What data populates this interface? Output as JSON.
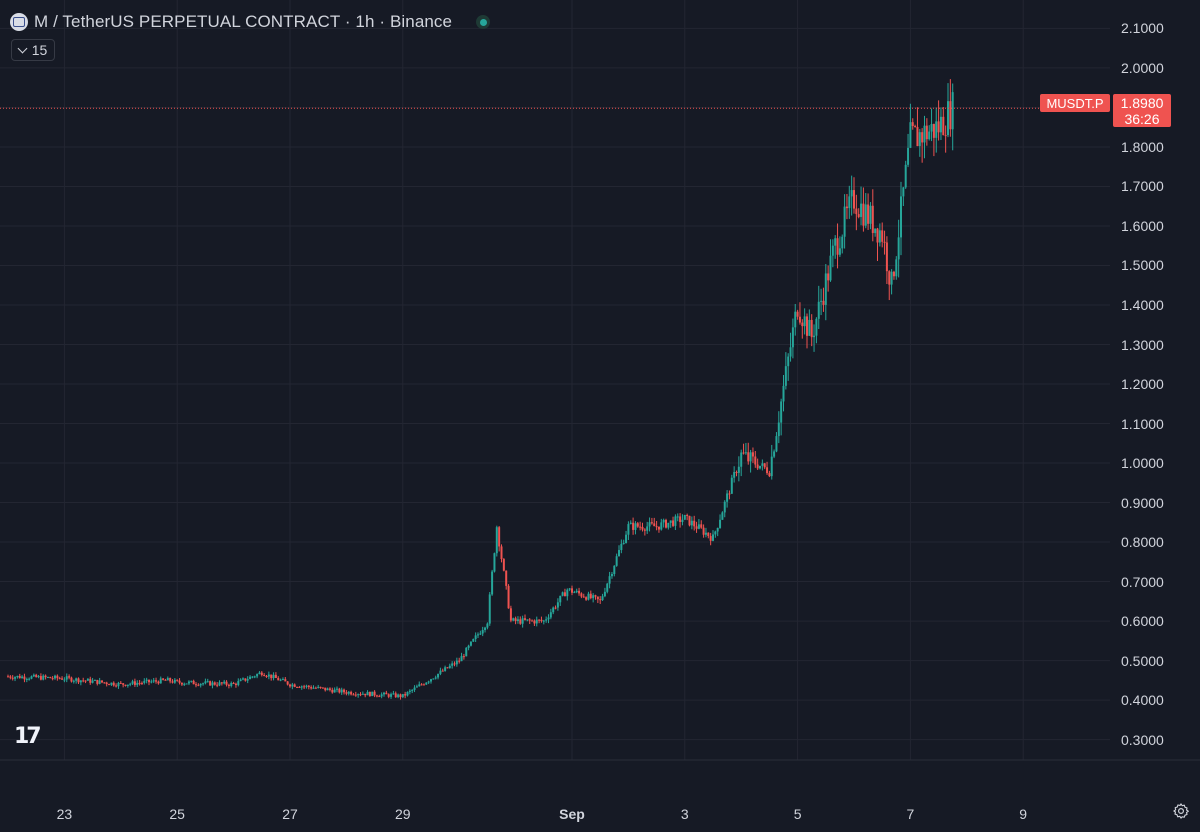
{
  "legend": {
    "title": "M / TetherUS PERPETUAL CONTRACT · 1h · Binance",
    "collapse_count": "15"
  },
  "price_axis": {
    "labels": [
      "2.1000",
      "2.0000",
      "1.9000",
      "1.8000",
      "1.7000",
      "1.6000",
      "1.5000",
      "1.4000",
      "1.3000",
      "1.2000",
      "1.1000",
      "1.0000",
      "0.9000",
      "0.8000",
      "0.7000",
      "0.6000",
      "0.5000",
      "0.4000",
      "0.3000"
    ]
  },
  "time_axis": {
    "labels": [
      {
        "text": "23",
        "bold": false
      },
      {
        "text": "25",
        "bold": false
      },
      {
        "text": "27",
        "bold": false
      },
      {
        "text": "29",
        "bold": false
      },
      {
        "text": "Sep",
        "bold": true
      },
      {
        "text": "3",
        "bold": false
      },
      {
        "text": "5",
        "bold": false
      },
      {
        "text": "7",
        "bold": false
      },
      {
        "text": "9",
        "bold": false
      }
    ]
  },
  "last_price": {
    "symbol": "MUSDT.P",
    "value": "1.8980",
    "countdown": "36:26"
  },
  "colors": {
    "background": "#161a25",
    "grid": "#232632",
    "up": "#26a69a",
    "down": "#ef5350",
    "text": "#d1d4dc"
  },
  "chart_data": {
    "type": "candlestick",
    "title": "M / TetherUS PERPETUAL CONTRACT · 1h · Binance",
    "xlabel": "",
    "ylabel": "",
    "ylim": [
      0.25,
      2.15
    ],
    "x_range": [
      "2025-08-22",
      "2025-09-10"
    ],
    "last_value": 1.898,
    "price_points": [
      {
        "t": "2025-08-22 00:00",
        "close": 0.46
      },
      {
        "t": "2025-08-23 00:00",
        "close": 0.455
      },
      {
        "t": "2025-08-24 00:00",
        "close": 0.44
      },
      {
        "t": "2025-08-24 20:00",
        "close": 0.45
      },
      {
        "t": "2025-08-25 00:00",
        "close": 0.445
      },
      {
        "t": "2025-08-26 00:00",
        "close": 0.44
      },
      {
        "t": "2025-08-26 12:00",
        "close": 0.47
      },
      {
        "t": "2025-08-27 00:00",
        "close": 0.44
      },
      {
        "t": "2025-08-28 00:00",
        "close": 0.42
      },
      {
        "t": "2025-08-29 00:00",
        "close": 0.41
      },
      {
        "t": "2025-08-30 00:00",
        "close": 0.5
      },
      {
        "t": "2025-08-30 12:00",
        "close": 0.6
      },
      {
        "t": "2025-08-30 16:00",
        "close": 0.84
      },
      {
        "t": "2025-08-30 22:00",
        "close": 0.6
      },
      {
        "t": "2025-08-31 12:00",
        "close": 0.6
      },
      {
        "t": "2025-08-31 22:00",
        "close": 0.68
      },
      {
        "t": "2025-09-01 12:00",
        "close": 0.65
      },
      {
        "t": "2025-09-02 00:00",
        "close": 0.84
      },
      {
        "t": "2025-09-02 12:00",
        "close": 0.84
      },
      {
        "t": "2025-09-03 00:00",
        "close": 0.86
      },
      {
        "t": "2025-09-03 12:00",
        "close": 0.81
      },
      {
        "t": "2025-09-04 00:00",
        "close": 1.02
      },
      {
        "t": "2025-09-04 12:00",
        "close": 0.98
      },
      {
        "t": "2025-09-05 00:00",
        "close": 1.4
      },
      {
        "t": "2025-09-05 06:00",
        "close": 1.32
      },
      {
        "t": "2025-09-05 16:00",
        "close": 1.55
      },
      {
        "t": "2025-09-06 00:00",
        "close": 1.67
      },
      {
        "t": "2025-09-06 12:00",
        "close": 1.58
      },
      {
        "t": "2025-09-06 16:00",
        "close": 1.45
      },
      {
        "t": "2025-09-07 00:00",
        "close": 1.82
      },
      {
        "t": "2025-09-07 12:00",
        "close": 1.85
      },
      {
        "t": "2025-09-07 18:00",
        "close": 1.898
      }
    ]
  }
}
